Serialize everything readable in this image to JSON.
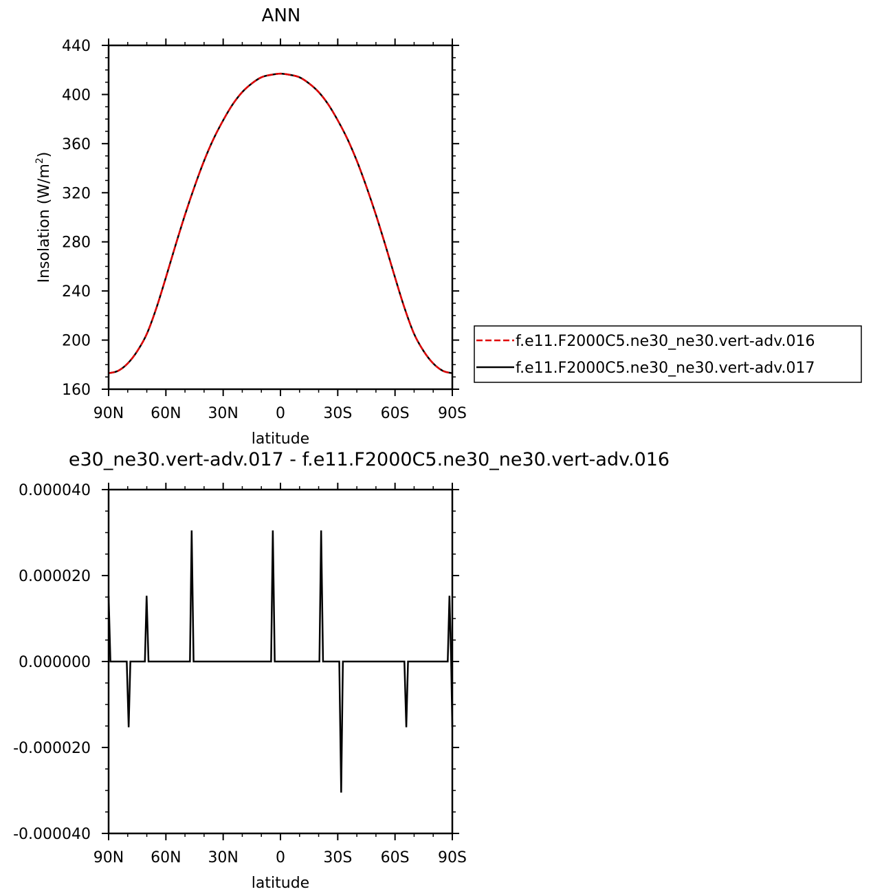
{
  "chart_data": [
    {
      "type": "line",
      "title": "ANN",
      "xlabel": "latitude",
      "ylabel": "Insolation  (W/m",
      "ylabel_sup": "2",
      "ylabel_end": ")",
      "xlim": [
        90,
        -90
      ],
      "ylim": [
        160,
        440
      ],
      "xticks": [
        {
          "value": 90,
          "label": "90N"
        },
        {
          "value": 60,
          "label": "60N"
        },
        {
          "value": 30,
          "label": "30N"
        },
        {
          "value": 0,
          "label": "0"
        },
        {
          "value": -30,
          "label": "30S"
        },
        {
          "value": -60,
          "label": "60S"
        },
        {
          "value": -90,
          "label": "90S"
        }
      ],
      "yticks": [
        {
          "value": 440,
          "label": "440"
        },
        {
          "value": 400,
          "label": "400"
        },
        {
          "value": 360,
          "label": "360"
        },
        {
          "value": 320,
          "label": "320"
        },
        {
          "value": 280,
          "label": "280"
        },
        {
          "value": 240,
          "label": "240"
        },
        {
          "value": 200,
          "label": "200"
        },
        {
          "value": 160,
          "label": "160"
        }
      ],
      "legend_position": "right",
      "x": [
        90,
        85,
        80,
        75,
        70,
        65,
        60,
        55,
        50,
        45,
        40,
        35,
        30,
        25,
        20,
        15,
        10,
        5,
        0,
        -5,
        -10,
        -15,
        -20,
        -25,
        -30,
        -35,
        -40,
        -45,
        -50,
        -55,
        -60,
        -65,
        -70,
        -75,
        -80,
        -85,
        -90
      ],
      "series": [
        {
          "name": "f.e11.F2000C5.ne30_ne30.vert-adv.016",
          "color": "#e00000",
          "dash": "dashed",
          "values": [
            173,
            175,
            181,
            191,
            205,
            226,
            251,
            277,
            302,
            325,
            346,
            364,
            379,
            392,
            402,
            409,
            414,
            416,
            417,
            416,
            414,
            409,
            402,
            392,
            379,
            364,
            346,
            325,
            302,
            277,
            251,
            226,
            205,
            191,
            181,
            175,
            173
          ]
        },
        {
          "name": "f.e11.F2000C5.ne30_ne30.vert-adv.017",
          "color": "#000000",
          "dash": "solid",
          "values": [
            173,
            175,
            181,
            191,
            205,
            226,
            251,
            277,
            302,
            325,
            346,
            364,
            379,
            392,
            402,
            409,
            414,
            416,
            417,
            416,
            414,
            409,
            402,
            392,
            379,
            364,
            346,
            325,
            302,
            277,
            251,
            226,
            205,
            191,
            181,
            175,
            173
          ]
        }
      ]
    },
    {
      "type": "line",
      "title": "e30_ne30.vert-adv.017 - f.e11.F2000C5.ne30_ne30.vert-adv.016",
      "xlabel": "latitude",
      "xlim": [
        90,
        -90
      ],
      "ylim": [
        -4e-05,
        4e-05
      ],
      "xticks": [
        {
          "value": 90,
          "label": "90N"
        },
        {
          "value": 60,
          "label": "60N"
        },
        {
          "value": 30,
          "label": "30N"
        },
        {
          "value": 0,
          "label": "0"
        },
        {
          "value": -30,
          "label": "30S"
        },
        {
          "value": -60,
          "label": "60S"
        },
        {
          "value": -90,
          "label": "90S"
        }
      ],
      "yticks": [
        {
          "value": 4e-05,
          "label": "0.000040"
        },
        {
          "value": 2e-05,
          "label": "0.000020"
        },
        {
          "value": 0,
          "label": "0.000000"
        },
        {
          "value": -2e-05,
          "label": "-0.000020"
        },
        {
          "value": -4e-05,
          "label": "-0.000040"
        }
      ],
      "series": [
        {
          "color": "#000000",
          "x": [
            90,
            89.05,
            88.1,
            80.5,
            79.5,
            78.6,
            71.0,
            70.1,
            69.1,
            47.4,
            46.5,
            45.5,
            4.9,
            4.0,
            3.0,
            -20.4,
            -21.3,
            -22.3,
            -30.8,
            -31.8,
            -32.7,
            -64.9,
            -65.9,
            -66.8,
            -87.6,
            -88.5,
            -89.4,
            -90
          ],
          "values": [
            1.53e-05,
            0,
            0,
            0,
            -1.53e-05,
            0,
            0,
            1.53e-05,
            0,
            0,
            3.05e-05,
            0,
            0,
            3.05e-05,
            0,
            0,
            3.05e-05,
            0,
            0,
            -3.05e-05,
            0,
            0,
            -1.53e-05,
            0,
            0,
            1.53e-05,
            0,
            -1.53e-05
          ]
        }
      ]
    }
  ]
}
